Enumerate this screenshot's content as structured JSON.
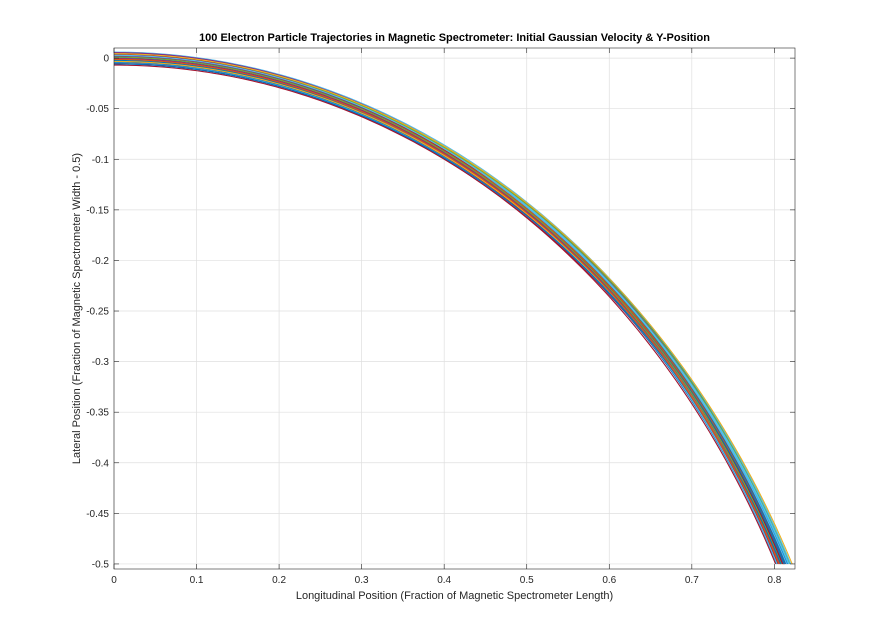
{
  "chart_data": {
    "type": "line",
    "title": "100 Electron Particle Trajectories in Magnetic Spectrometer: Initial Gaussian Velocity & Y-Position",
    "xlabel": "Longitudinal Position (Fraction of Magnetic Spectrometer Length)",
    "ylabel": "Lateral Position (Fraction of Magnetic Spectrometer Width - 0.5)",
    "xlim": [
      0,
      0.825
    ],
    "ylim": [
      -0.505,
      0.01
    ],
    "xticks": [
      0,
      0.1,
      0.2,
      0.3,
      0.4,
      0.5,
      0.6,
      0.7,
      0.8
    ],
    "xtick_labels": [
      "0",
      "0.1",
      "0.2",
      "0.3",
      "0.4",
      "0.5",
      "0.6",
      "0.7",
      "0.8"
    ],
    "yticks": [
      0,
      -0.05,
      -0.1,
      -0.15,
      -0.2,
      -0.25,
      -0.3,
      -0.35,
      -0.4,
      -0.45,
      -0.5
    ],
    "ytick_labels": [
      "0",
      "-0.05",
      "-0.1",
      "-0.15",
      "-0.2",
      "-0.25",
      "-0.3",
      "-0.35",
      "-0.4",
      "-0.45",
      "-0.5"
    ],
    "grid": true,
    "legend": false,
    "series_count": 100,
    "trajectory_model": "circular arc: y = y0 - (R - sqrt(R^2 - x^2)), traced until y = -0.5",
    "initial_y_range": [
      -0.009,
      0.009
    ],
    "radius_range": [
      0.88,
      0.935
    ],
    "series_colors": [
      "#0072BD",
      "#D95319",
      "#EDB120",
      "#7E2F8E",
      "#77AC30",
      "#4DBEEE",
      "#A2142F"
    ]
  }
}
